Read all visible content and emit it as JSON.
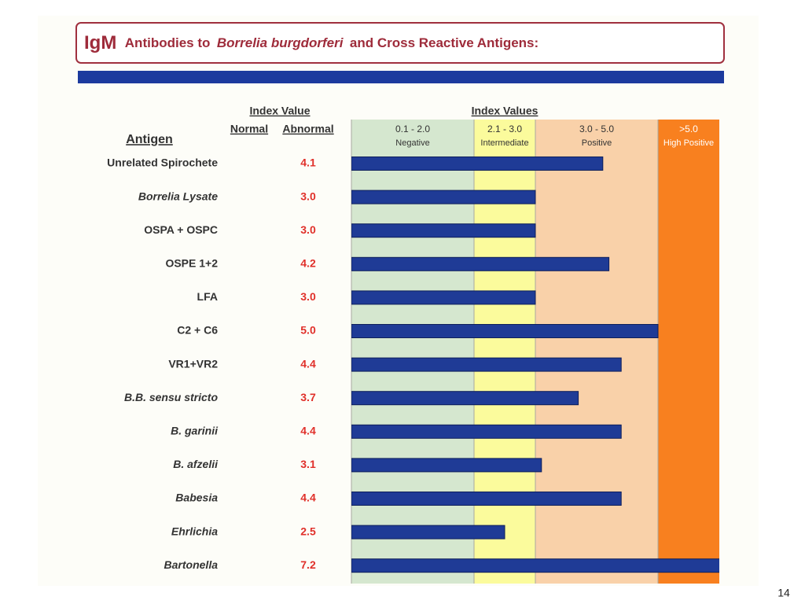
{
  "header": {
    "title_parts": [
      "IgM",
      "Antibodies to",
      "Borrelia burgdorferi",
      "and Cross Reactive Antigens:"
    ]
  },
  "chart_data": {
    "type": "bar",
    "orientation": "horizontal",
    "column_headers": {
      "index_value": "Index Value",
      "normal": "Normal",
      "abnormal": "Abnormal",
      "index_values": "Index Values",
      "antigen": "Antigen"
    },
    "categories": [
      "Unrelated Spirochete",
      "Borrelia Lysate",
      "OSPA + OSPC",
      "OSPE 1+2",
      "LFA",
      "C2 + C6",
      "VR1+VR2",
      "B.B. sensu stricto",
      "B. garinii",
      "B. afzelii",
      "Babesia",
      "Ehrlichia",
      "Bartonella"
    ],
    "italic": [
      false,
      true,
      false,
      false,
      false,
      false,
      false,
      true,
      true,
      true,
      true,
      true,
      true
    ],
    "values": [
      4.1,
      3.0,
      3.0,
      4.2,
      3.0,
      5.0,
      4.4,
      3.7,
      4.4,
      3.1,
      4.4,
      2.5,
      7.2
    ],
    "value_labels": [
      "4.1",
      "3.0",
      "3.0",
      "4.2",
      "3.0",
      "5.0",
      "4.4",
      "3.7",
      "4.4",
      "3.1",
      "4.4",
      "2.5",
      "7.2"
    ],
    "color": "#1f3b96",
    "label_color": "#e0302a",
    "xlim": [
      0,
      6
    ],
    "zones": [
      {
        "range": "0.1 - 2.0",
        "name": "Negative",
        "start": 0,
        "end": 2,
        "color": "#d5e7cf"
      },
      {
        "range": "2.1 - 3.0",
        "name": "Intermediate",
        "start": 2,
        "end": 3,
        "color": "#fbfb9c"
      },
      {
        "range": "3.0 - 5.0",
        "name": "Positive",
        "start": 3,
        "end": 5,
        "color": "#f9d1a9"
      },
      {
        "range": ">5.0",
        "name": "High Positive",
        "start": 5,
        "end": 6,
        "color": "#f8801f"
      }
    ]
  },
  "footer": {
    "page_number": "14"
  }
}
